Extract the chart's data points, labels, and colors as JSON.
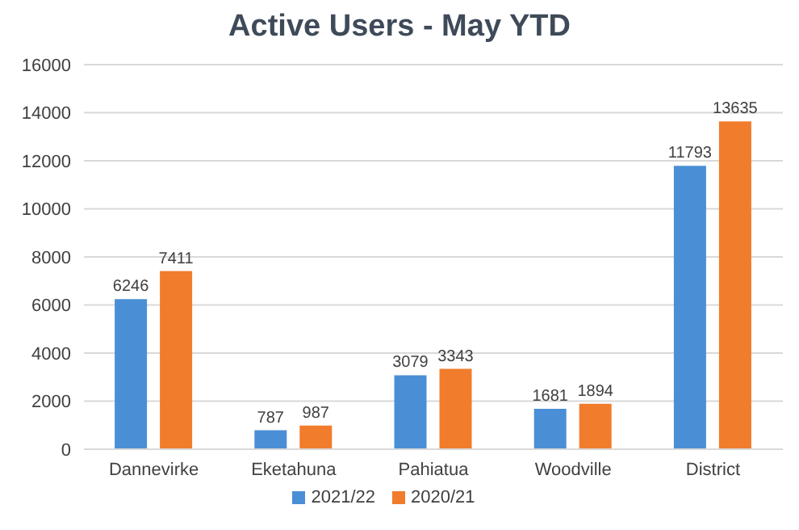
{
  "chart_data": {
    "type": "bar",
    "title": "Active Users - May YTD",
    "categories": [
      "Dannevirke",
      "Eketahuna",
      "Pahiatua",
      "Woodville",
      "District"
    ],
    "series": [
      {
        "name": "2021/22",
        "color": "#4a8fd6",
        "values": [
          6246,
          787,
          3079,
          1681,
          11793
        ]
      },
      {
        "name": "2020/21",
        "color": "#f07c2c",
        "values": [
          7411,
          987,
          3343,
          1894,
          13635
        ]
      }
    ],
    "ylim": [
      0,
      16000
    ],
    "yticks": [
      0,
      2000,
      4000,
      6000,
      8000,
      10000,
      12000,
      14000,
      16000
    ],
    "grid": "y",
    "legend": "bottom",
    "data_labels": true
  }
}
